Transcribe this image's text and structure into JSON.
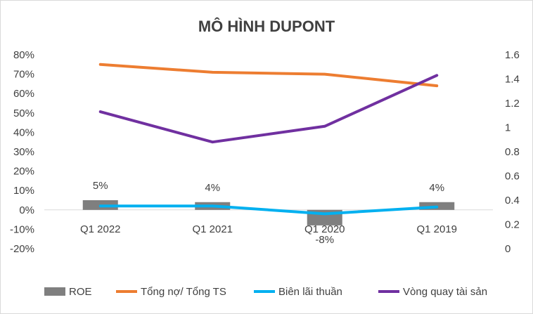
{
  "chart_data": {
    "type": "bar",
    "title": "MÔ HÌNH DUPONT",
    "categories": [
      "Q1 2022",
      "Q1 2021",
      "Q1 2020",
      "Q1 2019"
    ],
    "left_axis": {
      "ylim": [
        -0.2,
        0.8
      ],
      "ticks": [
        -0.2,
        -0.1,
        0,
        0.1,
        0.2,
        0.3,
        0.4,
        0.5,
        0.6,
        0.7,
        0.8
      ],
      "tick_labels": [
        "-20%",
        "-10%",
        "0%",
        "10%",
        "20%",
        "30%",
        "40%",
        "50%",
        "60%",
        "70%",
        "80%"
      ]
    },
    "right_axis": {
      "ylim": [
        0,
        1.6
      ],
      "ticks": [
        0,
        0.2,
        0.4,
        0.6,
        0.8,
        1.0,
        1.2,
        1.4,
        1.6
      ],
      "tick_labels": [
        "0",
        "0.2",
        "0.4",
        "0.6",
        "0.8",
        "1",
        "1.2",
        "1.4",
        "1.6"
      ]
    },
    "series": [
      {
        "name": "ROE",
        "type": "bar",
        "axis": "left",
        "color": "#7f7f7f",
        "values": [
          0.05,
          0.04,
          -0.08,
          0.04
        ],
        "data_labels": [
          "5%",
          "4%",
          "-8%",
          "4%"
        ]
      },
      {
        "name": "Tổng nợ/ Tổng TS",
        "type": "line",
        "axis": "left",
        "color": "#ed7d31",
        "values": [
          0.75,
          0.71,
          0.7,
          0.64
        ]
      },
      {
        "name": "Biên lãi thuần",
        "type": "line",
        "axis": "left",
        "color": "#00b0f0",
        "values": [
          0.02,
          0.02,
          -0.02,
          0.015
        ]
      },
      {
        "name": "Vòng quay tài sản",
        "type": "line",
        "axis": "right",
        "color": "#7030a0",
        "values": [
          1.13,
          0.88,
          1.01,
          1.43
        ]
      }
    ],
    "legend_position": "bottom",
    "grid": false
  }
}
